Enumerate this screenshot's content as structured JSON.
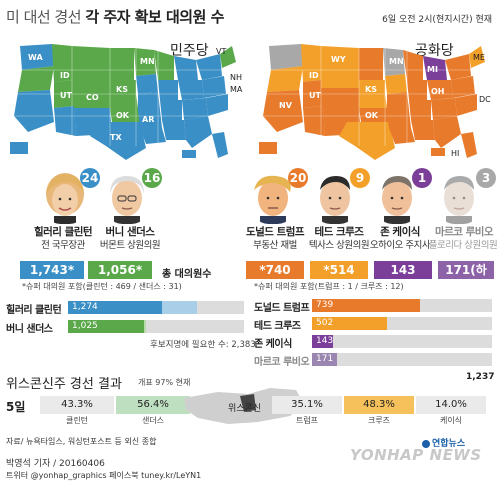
{
  "header": {
    "title_light": "미 대선 경선 ",
    "title_bold": "각 주자 확보 대의원 수",
    "time_note": "6일 오전 2시(현지시간) 현재"
  },
  "maps": {
    "dem_label": "민주당",
    "rep_label": "공화당",
    "dem_states": [
      "WA",
      "CO",
      "UT",
      "ID",
      "KS",
      "MN",
      "OK",
      "AR",
      "TX",
      "VT",
      "NH",
      "MA"
    ],
    "rep_states": [
      "ID",
      "MN",
      "WY",
      "UT",
      "ME",
      "NV",
      "KS",
      "MI",
      "OH",
      "OK",
      "DC",
      "HI"
    ]
  },
  "colors": {
    "clinton": "#3a8fc6",
    "sanders": "#5aa84a",
    "trump": "#e87a2b",
    "cruz": "#f3a02a",
    "kasich": "#7b3f9a",
    "rubio": "#a8a8a8"
  },
  "democrats": {
    "clinton": {
      "badge": "24",
      "name": "힐러리 클린턴",
      "title": "전 국무장관",
      "count": "1,743*"
    },
    "sanders": {
      "badge": "16",
      "name": "버니 샌더스",
      "title": "버몬트 상원의원",
      "count": "1,056*"
    },
    "total_label": "총 대의원수",
    "superdelegate_note": "*슈퍼 대의원 포함(클린턴 : 469 / 샌더스 : 31)",
    "needed_note": "후보지명에 필요한 수: 2,383"
  },
  "republicans": {
    "trump": {
      "badge": "20",
      "name": "도널드 트럼프",
      "title": "부동산 재벌",
      "count": "*740"
    },
    "cruz": {
      "badge": "9",
      "name": "테드 크루즈",
      "title": "텍사스 상원의원",
      "count": "*514"
    },
    "kasich": {
      "badge": "1",
      "name": "존 케이식",
      "title": "오하이오 주지사",
      "count": "143"
    },
    "rubio": {
      "badge": "3",
      "name": "마르코 루비오",
      "title": "플로리다 상원의원",
      "count": "171(하차)"
    },
    "superdelegate_note": "*슈퍼 대의원 포함(트럼프 : 1 / 크루즈 : 12)",
    "needed_count": "1,237"
  },
  "dem_bars": [
    {
      "name": "힐러리 클린턴",
      "label": "1,274",
      "value": 1743,
      "base": 1274
    },
    {
      "name": "버니 샌더스",
      "label": "1,025",
      "value": 1056,
      "base": 1025
    }
  ],
  "rep_bars": [
    {
      "name": "도널드 트럼프",
      "label": "739",
      "value": 740
    },
    {
      "name": "테드 크루즈",
      "label": "502",
      "value": 514
    },
    {
      "name": "존 케이식",
      "label": "143",
      "value": 143
    },
    {
      "name": "마르코 루비오",
      "label": "171",
      "value": 171
    }
  ],
  "wisconsin": {
    "title": "위스콘신주 경선 결과",
    "subtitle": "개표 97% 현재",
    "date": "5일",
    "state_label": "위스콘신",
    "dem": [
      {
        "pct": "43.3%",
        "name": "클린턴"
      },
      {
        "pct": "56.4%",
        "name": "샌더스"
      }
    ],
    "rep": [
      {
        "pct": "35.1%",
        "name": "트럼프"
      },
      {
        "pct": "48.3%",
        "name": "크루즈"
      },
      {
        "pct": "14.0%",
        "name": "케이식"
      }
    ]
  },
  "footer": {
    "source": "자료/ 뉴욕타임스, 워싱턴포스트 등 외신 종합",
    "reporter": "박영석 기자 / 20160406",
    "sns": "트위터 @yonhap_graphics  페이스북 tuney.kr/LeYN1",
    "logo": "연합뉴스",
    "watermark": "YONHAP NEWS"
  }
}
